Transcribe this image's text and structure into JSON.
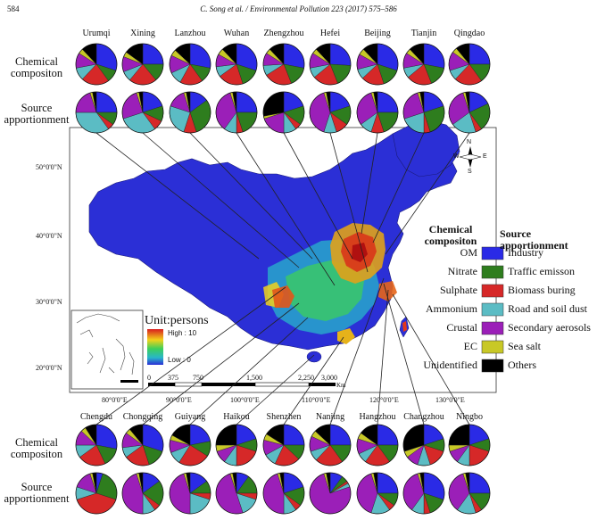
{
  "header": {
    "page_number": "584",
    "running_title": "C. Song et al. / Environmental Pollution 223 (2017) 575–586"
  },
  "row_labels": {
    "chemical": "Chemical compositon",
    "source": "Source apportionment"
  },
  "top_cities": [
    "Urumqi",
    "Xining",
    "Lanzhou",
    "Wuhan",
    "Zhengzhou",
    "Hefei",
    "Beijing",
    "Tianjin",
    "Qingdao"
  ],
  "bottom_cities": [
    "Chengdu",
    "Chongqing",
    "Guiyang",
    "Haikou",
    "Shenzhen",
    "Nanjing",
    "Hangzhou",
    "Changzhou",
    "Ningbo"
  ],
  "latitudes": [
    "50°0'0\"N",
    "40°0'0\"N",
    "30°0'0\"N",
    "20°0'0\"N"
  ],
  "longitudes": [
    "80°0'0\"E",
    "90°0'0\"E",
    "100°0'0\"E",
    "110°0'0\"E",
    "120°0'0\"E",
    "130°0'0\"E"
  ],
  "compass": {
    "n": "N",
    "s": "S",
    "e": "E",
    "w": "W"
  },
  "unit": {
    "title": "Unit:persons",
    "high": "High : 10",
    "low": "Low : 0"
  },
  "scale": {
    "ticks": [
      "0",
      "375",
      "750",
      "1,500",
      "2,250",
      "3,000"
    ],
    "unit": "Km"
  },
  "legend": {
    "chemical_title": "Chemical compositon",
    "source_title": "Source apportionment",
    "items": [
      {
        "chem": "OM",
        "source": "Industry",
        "color": "#2a2ae6"
      },
      {
        "chem": "Nitrate",
        "source": "Traffic emisson",
        "color": "#2e7d1e"
      },
      {
        "chem": "Sulphate",
        "source": "Biomass buring",
        "color": "#d62828"
      },
      {
        "chem": "Ammonium",
        "source": "Road and soil dust",
        "color": "#5bbcc4"
      },
      {
        "chem": "Crustal",
        "source": "Secondary aerosols",
        "color": "#9b1fb8"
      },
      {
        "chem": "EC",
        "source": "Sea salt",
        "color": "#c8c826"
      },
      {
        "chem": "Unidentified",
        "source": "Others",
        "color": "#000000"
      }
    ]
  },
  "pie_data": {
    "top_chem": [
      [
        0.3,
        0.1,
        0.22,
        0.1,
        0.12,
        0.04,
        0.12
      ],
      [
        0.25,
        0.14,
        0.22,
        0.08,
        0.12,
        0.04,
        0.15
      ],
      [
        0.28,
        0.12,
        0.18,
        0.1,
        0.14,
        0.05,
        0.13
      ],
      [
        0.3,
        0.15,
        0.2,
        0.08,
        0.1,
        0.05,
        0.12
      ],
      [
        0.28,
        0.16,
        0.22,
        0.08,
        0.1,
        0.04,
        0.12
      ],
      [
        0.26,
        0.18,
        0.2,
        0.08,
        0.12,
        0.04,
        0.12
      ],
      [
        0.3,
        0.15,
        0.18,
        0.08,
        0.12,
        0.05,
        0.12
      ],
      [
        0.28,
        0.16,
        0.2,
        0.08,
        0.12,
        0.04,
        0.12
      ],
      [
        0.25,
        0.15,
        0.22,
        0.08,
        0.15,
        0.04,
        0.11
      ]
    ],
    "top_source": [
      [
        0.25,
        0.1,
        0.05,
        0.35,
        0.2,
        0.02,
        0.03
      ],
      [
        0.2,
        0.12,
        0.08,
        0.3,
        0.25,
        0.02,
        0.03
      ],
      [
        0.15,
        0.3,
        0.1,
        0.25,
        0.15,
        0.02,
        0.03
      ],
      [
        0.25,
        0.2,
        0.05,
        0.1,
        0.35,
        0.02,
        0.03
      ],
      [
        0.2,
        0.15,
        0.05,
        0.1,
        0.2,
        0.02,
        0.28
      ],
      [
        0.2,
        0.15,
        0.1,
        0.1,
        0.4,
        0.02,
        0.03
      ],
      [
        0.25,
        0.2,
        0.1,
        0.1,
        0.3,
        0.02,
        0.03
      ],
      [
        0.2,
        0.25,
        0.05,
        0.2,
        0.25,
        0.02,
        0.03
      ],
      [
        0.18,
        0.22,
        0.05,
        0.2,
        0.3,
        0.02,
        0.03
      ]
    ],
    "bottom_chem": [
      [
        0.28,
        0.15,
        0.22,
        0.1,
        0.12,
        0.04,
        0.09
      ],
      [
        0.3,
        0.15,
        0.2,
        0.08,
        0.12,
        0.04,
        0.11
      ],
      [
        0.22,
        0.12,
        0.25,
        0.1,
        0.1,
        0.04,
        0.17
      ],
      [
        0.2,
        0.1,
        0.2,
        0.1,
        0.1,
        0.05,
        0.25
      ],
      [
        0.25,
        0.12,
        0.2,
        0.1,
        0.12,
        0.05,
        0.16
      ],
      [
        0.25,
        0.15,
        0.22,
        0.08,
        0.12,
        0.05,
        0.13
      ],
      [
        0.25,
        0.15,
        0.2,
        0.08,
        0.12,
        0.05,
        0.15
      ],
      [
        0.2,
        0.1,
        0.15,
        0.1,
        0.1,
        0.05,
        0.3
      ],
      [
        0.2,
        0.1,
        0.2,
        0.1,
        0.1,
        0.05,
        0.25
      ]
    ],
    "bottom_source": [
      [
        0.05,
        0.25,
        0.4,
        0.1,
        0.15,
        0.02,
        0.03
      ],
      [
        0.15,
        0.2,
        0.05,
        0.1,
        0.45,
        0.02,
        0.03
      ],
      [
        0.15,
        0.1,
        0.05,
        0.2,
        0.45,
        0.02,
        0.03
      ],
      [
        0.1,
        0.15,
        0.05,
        0.15,
        0.5,
        0.02,
        0.03
      ],
      [
        0.2,
        0.15,
        0.05,
        0.1,
        0.45,
        0.02,
        0.03
      ],
      [
        0.1,
        0.05,
        0.02,
        0.03,
        0.75,
        0.02,
        0.03
      ],
      [
        0.25,
        0.1,
        0.05,
        0.15,
        0.4,
        0.02,
        0.03
      ],
      [
        0.3,
        0.15,
        0.05,
        0.1,
        0.35,
        0.02,
        0.03
      ],
      [
        0.25,
        0.15,
        0.05,
        0.15,
        0.35,
        0.02,
        0.03
      ]
    ]
  }
}
